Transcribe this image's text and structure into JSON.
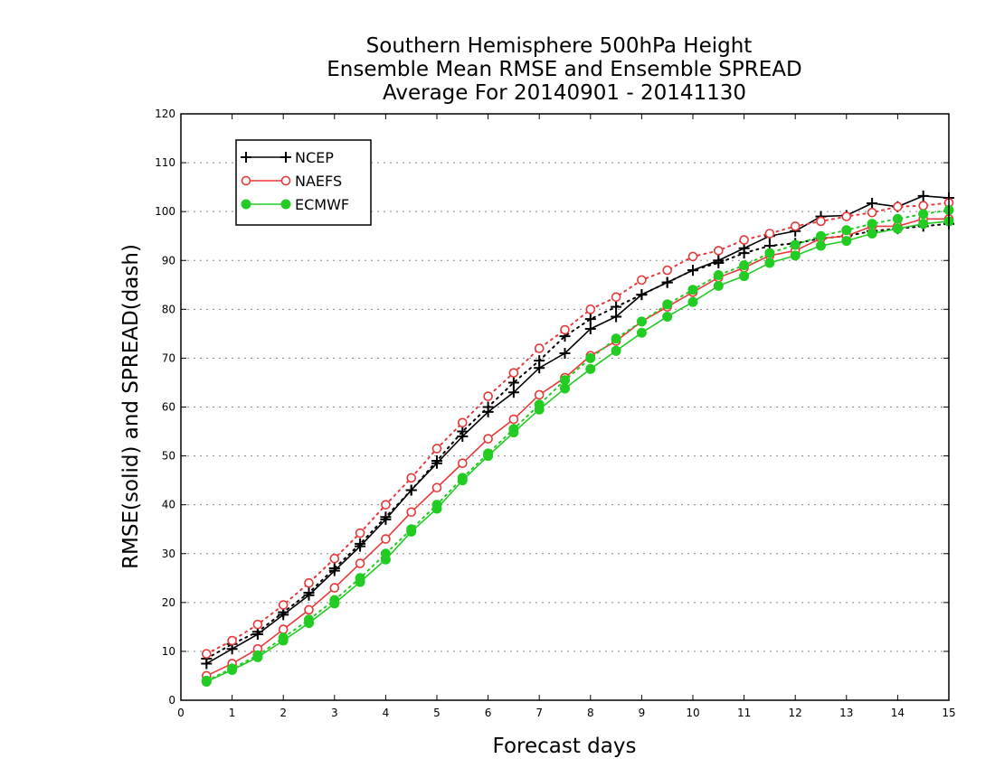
{
  "chart_data": {
    "type": "line",
    "title": [
      "Southern Hemisphere 500hPa Height",
      "Ensemble Mean RMSE and Ensemble SPREAD",
      "Average For 20140901 - 20141130"
    ],
    "xlabel": "Forecast days",
    "ylabel": "RMSE(solid) and SPREAD(dash)",
    "xlim": [
      0,
      15
    ],
    "ylim": [
      0,
      120
    ],
    "xticks": [
      0,
      1,
      2,
      3,
      4,
      5,
      6,
      7,
      8,
      9,
      10,
      11,
      12,
      13,
      14,
      15
    ],
    "yticks": [
      0,
      10,
      20,
      30,
      40,
      50,
      60,
      70,
      80,
      90,
      100,
      110,
      120
    ],
    "grid": "horizontal dotted",
    "legend_position": "top-left",
    "x": [
      0.5,
      1,
      1.5,
      2,
      2.5,
      3,
      3.5,
      4,
      4.5,
      5,
      5.5,
      6,
      6.5,
      7,
      7.5,
      8,
      8.5,
      9,
      9.5,
      10,
      10.5,
      11,
      11.5,
      12,
      12.5,
      13,
      13.5,
      14,
      14.5,
      15
    ],
    "series": [
      {
        "name": "NCEP",
        "color": "#000000",
        "marker": "plus",
        "rmse": [
          7.5,
          10.5,
          13.5,
          17.5,
          21.5,
          26.5,
          31.5,
          37,
          43,
          48.5,
          54,
          59,
          63,
          68,
          71,
          76,
          78.5,
          83,
          85.5,
          88,
          90,
          92.5,
          95,
          96,
          99,
          99.2,
          101.7,
          101,
          103.2,
          102.8
        ],
        "spread": [
          8.5,
          11.5,
          14,
          18,
          22,
          27,
          32,
          37.5,
          43,
          49,
          55,
          60,
          65,
          69.5,
          74.5,
          78,
          80.5,
          83,
          85.5,
          88,
          89.5,
          91.5,
          93,
          93.5,
          94.5,
          95,
          96,
          96.5,
          97,
          97.5
        ]
      },
      {
        "name": "NAEFS",
        "color": "#e8393a",
        "marker": "open-circle",
        "rmse": [
          5,
          7.5,
          10.5,
          14.5,
          18.5,
          23,
          28,
          33,
          38.5,
          43.5,
          48.5,
          53.5,
          57.5,
          62.5,
          66,
          70.5,
          73.5,
          77.5,
          80.5,
          83.5,
          86.5,
          88.5,
          91,
          92,
          94.5,
          95,
          97,
          97,
          98.5,
          98.5
        ],
        "spread": [
          9.5,
          12.2,
          15.5,
          19.5,
          24,
          29,
          34.2,
          40,
          45.5,
          51.5,
          56.8,
          62.2,
          67,
          72,
          75.8,
          80,
          82.5,
          86,
          88,
          90.8,
          92,
          94.2,
          95.5,
          97,
          98,
          99,
          99.8,
          101,
          101.2,
          101.8
        ]
      },
      {
        "name": "ECMWF",
        "color": "#22cc22",
        "marker": "filled-circle",
        "rmse": [
          3.8,
          6.2,
          8.8,
          12.2,
          15.8,
          19.8,
          24.2,
          28.8,
          34.5,
          39.2,
          45,
          50,
          54.8,
          59.5,
          63.8,
          67.8,
          71.5,
          75.2,
          78.5,
          81.5,
          84.8,
          86.8,
          89.5,
          91,
          93,
          94,
          95.5,
          96.5,
          97.5,
          98
        ],
        "spread": [
          4,
          6.5,
          9.2,
          12.8,
          16.5,
          20.5,
          25,
          30,
          35,
          40,
          45.5,
          50.5,
          55.5,
          60.5,
          65.5,
          70,
          74,
          77.5,
          81,
          84,
          87,
          89,
          91.5,
          93.2,
          95,
          96.2,
          97.5,
          98.5,
          99.5,
          100.3
        ]
      }
    ]
  }
}
